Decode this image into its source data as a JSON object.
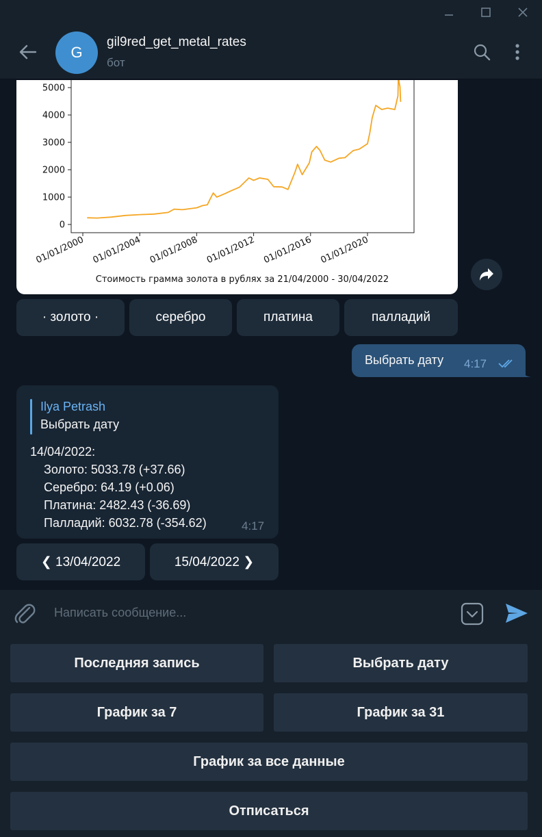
{
  "window": {
    "controls": [
      "minimize-icon",
      "maximize-icon",
      "close-icon"
    ]
  },
  "header": {
    "avatar_letter": "G",
    "avatar_color": "#3f8fd0",
    "title": "gil9red_get_metal_rates",
    "subtitle": "бот"
  },
  "chart_data": {
    "type": "line",
    "title": "Стоимость грамма золота в рублях за 21/04/2000 - 30/04/2022",
    "xlabel": "",
    "ylabel": "",
    "color": "#f5a623",
    "x_ticks": [
      "01/01/2000",
      "01/01/2004",
      "01/01/2008",
      "01/01/2012",
      "01/01/2016",
      "01/01/2020"
    ],
    "y_ticks": [
      0,
      1000,
      2000,
      3000,
      4000,
      5000
    ],
    "xlim": [
      "2000-01-01",
      "2022-04-30"
    ],
    "ylim": [
      0,
      5600
    ],
    "grid": false,
    "x": [
      "2000-04-21",
      "2001-01-01",
      "2002-01-01",
      "2003-01-01",
      "2004-01-01",
      "2005-01-01",
      "2006-01-01",
      "2006-06-01",
      "2007-01-01",
      "2008-01-01",
      "2008-06-01",
      "2008-10-01",
      "2008-12-01",
      "2009-03-01",
      "2009-06-01",
      "2010-01-01",
      "2010-06-01",
      "2011-01-01",
      "2011-09-01",
      "2012-01-01",
      "2012-06-01",
      "2013-01-01",
      "2013-06-01",
      "2014-01-01",
      "2014-06-01",
      "2014-12-01",
      "2015-02-01",
      "2015-06-01",
      "2015-12-01",
      "2016-02-01",
      "2016-06-01",
      "2016-09-01",
      "2017-01-01",
      "2017-06-01",
      "2018-01-01",
      "2018-06-01",
      "2019-01-01",
      "2019-06-01",
      "2020-01-01",
      "2020-03-01",
      "2020-05-01",
      "2020-08-01",
      "2021-01-01",
      "2021-06-01",
      "2021-12-01",
      "2022-02-20",
      "2022-03-05",
      "2022-03-20",
      "2022-04-14",
      "2022-04-30"
    ],
    "values": [
      245,
      235,
      270,
      330,
      360,
      380,
      440,
      560,
      540,
      610,
      690,
      720,
      900,
      1150,
      1000,
      1130,
      1230,
      1360,
      1700,
      1610,
      1700,
      1650,
      1380,
      1370,
      1280,
      1920,
      2200,
      1820,
      2250,
      2650,
      2850,
      2700,
      2350,
      2280,
      2420,
      2440,
      2700,
      2750,
      2950,
      3350,
      3900,
      4350,
      4200,
      4250,
      4200,
      4700,
      5800,
      5200,
      5033,
      4480
    ]
  },
  "inline_keyboard": [
    "· золото ·",
    "серебро",
    "платина",
    "палладий"
  ],
  "outgoing": {
    "text": "Выбрать дату",
    "time": "4:17"
  },
  "incoming": {
    "reply_name": "Ilya Petrash",
    "reply_text": "Выбрать дату",
    "lines": [
      "14/04/2022:",
      "    Золото: 5033.78 (+37.66)",
      "    Серебро: 64.19 (+0.06)",
      "    Платина: 2482.43 (-36.69)",
      "    Палладий: 6032.78 (-354.62)"
    ],
    "time": "4:17"
  },
  "nav_buttons": {
    "prev": "❮ 13/04/2022",
    "next": "15/04/2022 ❯"
  },
  "composer": {
    "placeholder": "Написать сообщение..."
  },
  "reply_keyboard": {
    "last_record": "Последняя запись",
    "pick_date": "Выбрать дату",
    "chart_7": "График за 7",
    "chart_31": "График за 31",
    "chart_all": "График за все данные",
    "unsubscribe": "Отписаться"
  }
}
